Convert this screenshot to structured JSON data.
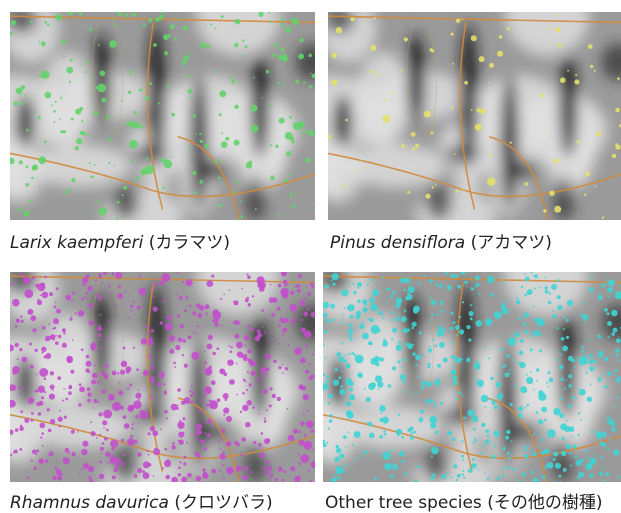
{
  "panels": [
    {
      "name": "Larix kaempferi",
      "local_name": "(カラマツ)"
    },
    {
      "name": "Pinus densiflora",
      "local_name": "(アカマツ)"
    },
    {
      "name": "Rhamnus davurica",
      "local_name": "(クロツバラ)"
    },
    {
      "name": "Other tree species",
      "local_name": "(その他の樹種)"
    }
  ]
}
